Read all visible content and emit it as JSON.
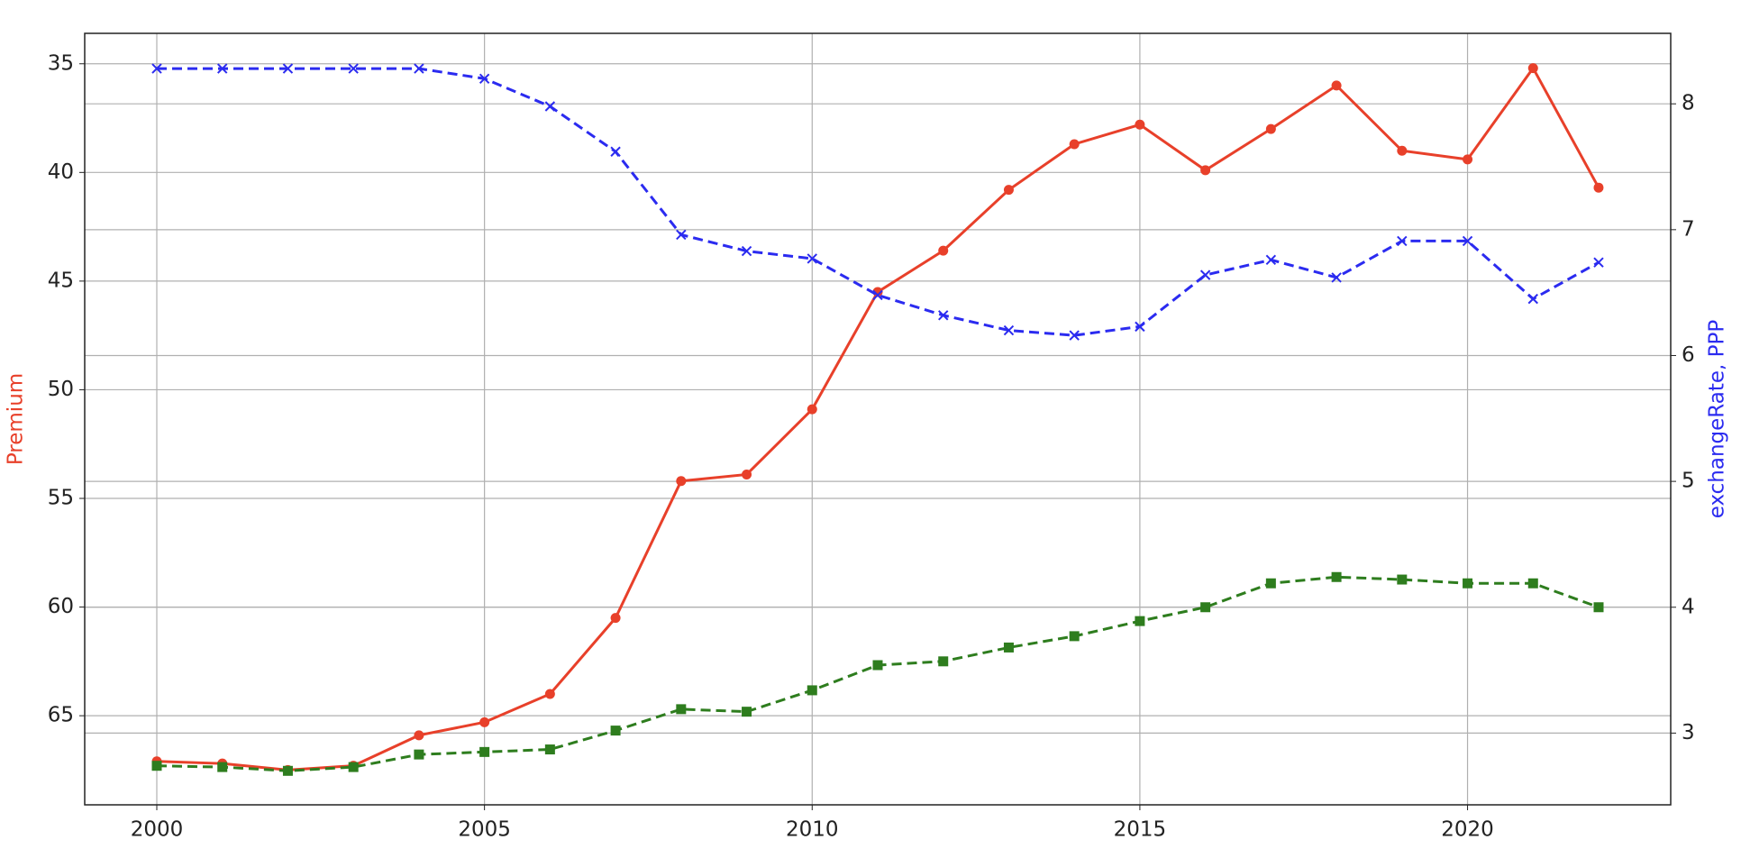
{
  "chart_data": {
    "type": "line",
    "x": [
      2000,
      2001,
      2002,
      2003,
      2004,
      2005,
      2006,
      2007,
      2008,
      2009,
      2010,
      2011,
      2012,
      2013,
      2014,
      2015,
      2016,
      2017,
      2018,
      2019,
      2020,
      2021,
      2022
    ],
    "xlim": [
      1998.9,
      2023.1
    ],
    "xticks": [
      2000,
      2005,
      2010,
      2015,
      2020
    ],
    "ylabel": "Premium",
    "ylim": [
      69.1,
      33.6
    ],
    "yticks": [
      35,
      40,
      45,
      50,
      55,
      60,
      65
    ],
    "y_inverted": true,
    "y2label": "exchangeRate, PPP",
    "y2lim": [
      2.43,
      8.56
    ],
    "y2ticks": [
      3,
      4,
      5,
      6,
      7,
      8
    ],
    "grid": true,
    "series": [
      {
        "name": "Premium",
        "color": "#e8402a",
        "linestyle": "solid",
        "marker": "circle",
        "values": [
          67.1,
          67.2,
          67.5,
          67.3,
          65.9,
          65.3,
          64.0,
          60.5,
          54.2,
          53.9,
          50.9,
          45.5,
          43.6,
          40.8,
          38.7,
          37.8,
          39.9,
          38.0,
          36.0,
          39.0,
          39.4,
          35.2,
          40.7
        ]
      },
      {
        "name": "exchangeRate",
        "color": "#2b2bf0",
        "linestyle": "dashed",
        "marker": "x",
        "axis": "y2",
        "values": [
          8.28,
          8.28,
          8.28,
          8.28,
          8.28,
          8.2,
          7.98,
          7.62,
          6.96,
          6.83,
          6.77,
          6.48,
          6.32,
          6.2,
          6.16,
          6.23,
          6.64,
          6.76,
          6.62,
          6.91,
          6.91,
          6.45,
          6.74
        ]
      },
      {
        "name": "PPP",
        "color": "#2e7d1e",
        "linestyle": "dashed",
        "marker": "square",
        "axis": "y2",
        "values": [
          2.74,
          2.73,
          2.7,
          2.73,
          2.83,
          2.85,
          2.87,
          3.02,
          3.19,
          3.17,
          3.34,
          3.54,
          3.57,
          3.68,
          3.77,
          3.89,
          4.0,
          4.19,
          4.24,
          4.22,
          4.19,
          4.19,
          4.0
        ]
      }
    ]
  }
}
